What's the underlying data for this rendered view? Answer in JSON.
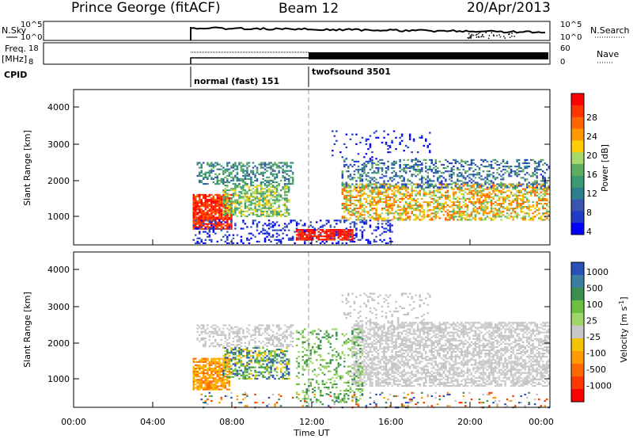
{
  "header": {
    "station": "Prince George (fitACF)",
    "beam": "Beam 12",
    "date": "20/Apr/2013"
  },
  "panels": {
    "nsky_label": "N.Sky",
    "nsky_ticks": [
      "10^5",
      "10^0"
    ],
    "nsearch_label": "N.Search",
    "nsearch_ticks": [
      "10^5",
      "10^0"
    ],
    "freq_label": "Freq.",
    "freq_unit": "[MHz]",
    "freq_ticks": [
      "18",
      "8"
    ],
    "nave_label": "Nave",
    "nave_ticks": [
      "60",
      "0"
    ],
    "cpid_label": "CPID",
    "cpid_modes": [
      "normal (fast) 151",
      "twofsound 3501"
    ]
  },
  "chart_data": [
    {
      "type": "heatmap",
      "name": "power",
      "ylabel": "Slant Range [km]",
      "yticks": [
        "4000",
        "3000",
        "2000",
        "1000"
      ],
      "ylim": [
        180,
        4500
      ],
      "colorbar_label": "Power [dB]",
      "colorbar_ticks": [
        "28",
        "24",
        "20",
        "16",
        "12",
        "8",
        "4"
      ],
      "colorbar_colors": [
        "#ff0000",
        "#ff3300",
        "#ff6600",
        "#ff9900",
        "#ffcc00",
        "#a6d96a",
        "#5fae5f",
        "#3a9a72",
        "#2c7f8c",
        "#3a55b0",
        "#1e3cc8",
        "#0000ff"
      ],
      "data_start_ut": "06:00",
      "mode_change_ut": "12:00"
    },
    {
      "type": "heatmap",
      "name": "velocity",
      "ylabel": "Slant Range [km]",
      "yticks": [
        "4000",
        "3000",
        "2000",
        "1000"
      ],
      "ylim": [
        180,
        4500
      ],
      "xlabel": "Time UT",
      "xticks": [
        "00:00",
        "04:00",
        "08:00",
        "12:00",
        "16:00",
        "20:00",
        "00:00"
      ],
      "colorbar_label": "Velocity [m s",
      "colorbar_label_sup": "-1",
      "colorbar_label_end": "]",
      "colorbar_ticks": [
        "1000",
        "500",
        "100",
        "25",
        "-25",
        "-100",
        "-500",
        "-1000"
      ],
      "colorbar_colors": [
        "#2a50b8",
        "#3a7fa0",
        "#3c8f50",
        "#6cc040",
        "#9fd66a",
        "#c8c8c8",
        "#f5c200",
        "#ff9a00",
        "#ff6a00",
        "#ff3a00",
        "#ff0000"
      ]
    }
  ],
  "colors": {
    "ground_scatter": "#c3c3c3",
    "grid": "#aaaaaa",
    "frame": "#000000"
  }
}
